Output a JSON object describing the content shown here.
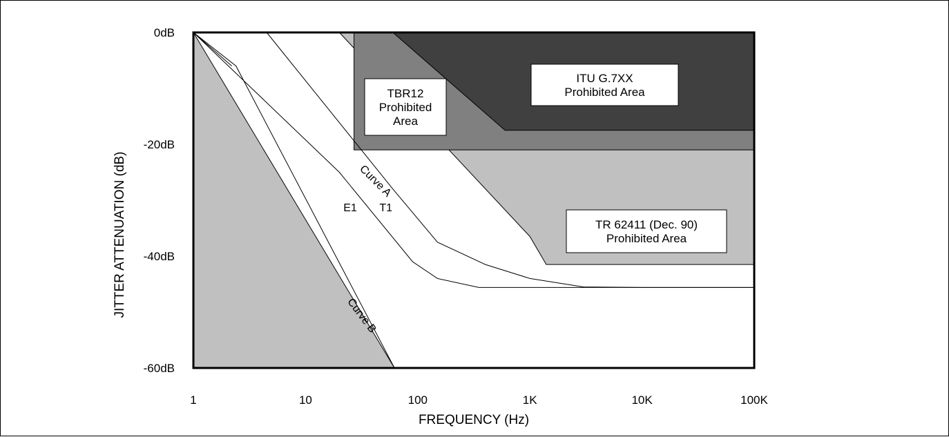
{
  "chart_data": {
    "type": "area",
    "xlabel": "FREQUENCY (Hz)",
    "ylabel": "JITTER ATTENUATION (dB)",
    "x_scale": "log",
    "xlim": [
      1,
      100000
    ],
    "ylim": [
      -60,
      0
    ],
    "x_ticks": [
      {
        "value": 1,
        "label": "1"
      },
      {
        "value": 10,
        "label": "10"
      },
      {
        "value": 100,
        "label": "100"
      },
      {
        "value": 1000,
        "label": "1K"
      },
      {
        "value": 10000,
        "label": "10K"
      },
      {
        "value": 100000,
        "label": "100K"
      }
    ],
    "y_ticks": [
      {
        "value": 0,
        "label": "0dB"
      },
      {
        "value": -20,
        "label": "-20dB"
      },
      {
        "value": -40,
        "label": "-40dB"
      },
      {
        "value": -60,
        "label": "-60dB"
      }
    ],
    "grid": false,
    "regions": [
      {
        "name": "TR 62411 (Dec. 90) Prohibited Area",
        "label_lines": [
          "TR 62411 (Dec. 90)",
          "Prohibited Area"
        ],
        "color": "#c0c0c0",
        "points": [
          [
            20,
            0
          ],
          [
            1000,
            -36.5
          ],
          [
            1400,
            -41.5
          ],
          [
            100000,
            -41.5
          ],
          [
            100000,
            0
          ]
        ]
      },
      {
        "name": "TBR12 Prohibited Area",
        "label_lines": [
          "TBR12",
          "Prohibited",
          "Area"
        ],
        "color": "#808080",
        "points": [
          [
            27,
            0
          ],
          [
            27,
            -21
          ],
          [
            100000,
            -21
          ],
          [
            100000,
            0
          ]
        ]
      },
      {
        "name": "ITU G.7XX Prohibited Area",
        "label_lines": [
          "ITU G.7XX",
          "Prohibited Area"
        ],
        "color": "#404040",
        "points": [
          [
            60,
            0
          ],
          [
            600,
            -17.5
          ],
          [
            100000,
            -17.5
          ],
          [
            100000,
            0
          ]
        ]
      },
      {
        "name": "Curve B",
        "label_lines": [],
        "color": "#c0c0c0",
        "points": [
          [
            1,
            0
          ],
          [
            1,
            -60
          ],
          [
            62,
            -60
          ]
        ]
      }
    ],
    "curves": [
      {
        "name": "Curve A",
        "points": [
          [
            4.5,
            0
          ],
          [
            60,
            -28
          ],
          [
            150,
            -37.5
          ],
          [
            400,
            -41.5
          ],
          [
            1000,
            -44
          ],
          [
            3000,
            -45.5
          ],
          [
            10000,
            -45.6
          ],
          [
            100000,
            -45.6
          ]
        ]
      },
      {
        "name": "Curve B",
        "points": [
          [
            1,
            0
          ],
          [
            2.4,
            -6
          ],
          [
            62,
            -60
          ]
        ]
      },
      {
        "name": "T1",
        "points": [
          [
            1,
            0
          ],
          [
            20,
            -25
          ],
          [
            90,
            -41
          ],
          [
            150,
            -44
          ],
          [
            350,
            -45.6
          ],
          [
            100000,
            -45.6
          ]
        ]
      },
      {
        "name": "E1",
        "points": [
          [
            1,
            0
          ],
          [
            2.2,
            -6
          ]
        ]
      }
    ],
    "annotations": [
      {
        "text": "Curve A",
        "x": 40,
        "y": -27,
        "rotation": 45
      },
      {
        "text": "Curve B",
        "x": 30,
        "y": -51,
        "rotation": 53
      },
      {
        "text": "E1",
        "x": 25,
        "y": -32
      },
      {
        "text": "T1",
        "x": 52,
        "y": -32
      }
    ]
  }
}
